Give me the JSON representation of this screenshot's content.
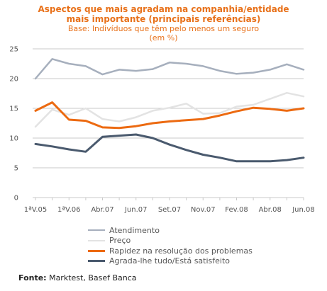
{
  "title": "Aspectos que mais agradam na companhia/entidade mais importante (principais referências)",
  "subtitle_1": "Base: Indivíduos que têm pelo menos um seguro",
  "subtitle_2": "(em %)",
  "source_label": "Fonte:",
  "source_text": " Marktest, Basef Banca",
  "colors": {
    "atendimento": "#a6afbd",
    "preco": "#e3e3e3",
    "rapidez": "#ec6a11",
    "agrada": "#4a5a6e",
    "grid": "#c9c9c9"
  },
  "chart_data": {
    "type": "line",
    "title": "Aspectos que mais agradam na companhia/entidade mais importante (principais referências)",
    "ylim": [
      0,
      25
    ],
    "yticks": [
      0,
      5,
      10,
      15,
      20,
      25
    ],
    "grid": true,
    "legend_position": "bottom",
    "x": [
      "1ªV.05",
      "",
      "1ªV.06",
      "",
      "Abr.07",
      "",
      "Jun.07",
      "",
      "Set.07",
      "",
      "Nov.07",
      "",
      "Fev.08",
      "",
      "Abr.08",
      "",
      "Jun.08"
    ],
    "x_tick_labels": [
      "1ªV.05",
      "1ªV.06",
      "Abr.07",
      "Jun.07",
      "Set.07",
      "Nov.07",
      "Fev.08",
      "Abr.08",
      "Jun.08"
    ],
    "series": [
      {
        "name": "Atendimento",
        "color_key": "atendimento",
        "values": [
          20.0,
          23.3,
          22.5,
          22.1,
          20.7,
          21.5,
          21.3,
          21.6,
          22.7,
          22.5,
          22.1,
          21.3,
          20.8,
          21.0,
          21.5,
          22.4,
          21.5
        ]
      },
      {
        "name": "Preço",
        "color_key": "preco",
        "values": [
          11.9,
          14.8,
          13.9,
          15.0,
          13.2,
          12.8,
          13.5,
          14.6,
          15.1,
          15.8,
          14.1,
          14.2,
          15.3,
          15.6,
          16.6,
          17.6,
          17.0
        ]
      },
      {
        "name": "Rapidez na resolução dos problemas",
        "color_key": "rapidez",
        "values": [
          14.6,
          16.0,
          13.1,
          12.9,
          11.8,
          11.7,
          12.0,
          12.5,
          12.8,
          13.0,
          13.2,
          13.8,
          14.5,
          15.1,
          14.9,
          14.6,
          15.0
        ]
      },
      {
        "name": "Agrada-lhe tudo/Está satisfeito",
        "color_key": "agrada",
        "values": [
          9.0,
          8.6,
          8.1,
          7.7,
          10.2,
          10.4,
          10.6,
          10.0,
          8.9,
          8.0,
          7.2,
          6.7,
          6.1,
          6.1,
          6.1,
          6.3,
          6.7
        ]
      }
    ]
  }
}
